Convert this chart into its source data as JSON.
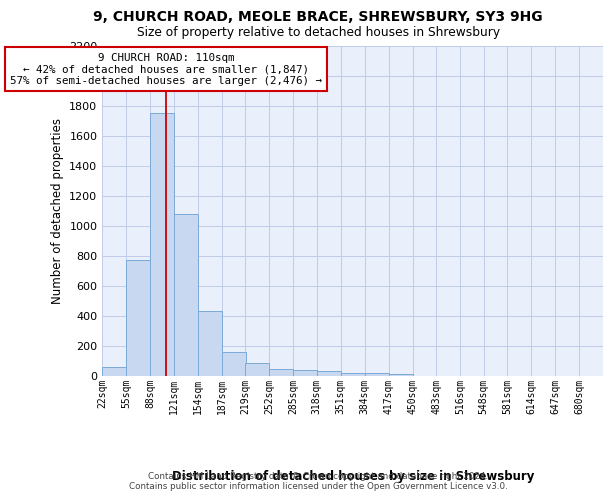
{
  "title_line1": "9, CHURCH ROAD, MEOLE BRACE, SHREWSBURY, SY3 9HG",
  "title_line2": "Size of property relative to detached houses in Shrewsbury",
  "xlabel": "Distribution of detached houses by size in Shrewsbury",
  "ylabel": "Number of detached properties",
  "bin_labels": [
    "22sqm",
    "55sqm",
    "88sqm",
    "121sqm",
    "154sqm",
    "187sqm",
    "219sqm",
    "252sqm",
    "285sqm",
    "318sqm",
    "351sqm",
    "384sqm",
    "417sqm",
    "450sqm",
    "483sqm",
    "516sqm",
    "548sqm",
    "581sqm",
    "614sqm",
    "647sqm",
    "680sqm"
  ],
  "bin_edges": [
    22,
    55,
    88,
    121,
    154,
    187,
    219,
    252,
    285,
    318,
    351,
    384,
    417,
    450,
    483,
    516,
    548,
    581,
    614,
    647,
    680
  ],
  "bar_heights": [
    55,
    770,
    1750,
    1075,
    430,
    155,
    85,
    45,
    35,
    28,
    20,
    15,
    12,
    0,
    0,
    0,
    0,
    0,
    0,
    0
  ],
  "bar_color": "#c8d8f0",
  "bar_edge_color": "#7aaad8",
  "vline_x": 110,
  "vline_color": "#cc0000",
  "ylim_max": 2200,
  "yticks": [
    0,
    200,
    400,
    600,
    800,
    1000,
    1200,
    1400,
    1600,
    1800,
    2000,
    2200
  ],
  "annotation_line1": "9 CHURCH ROAD: 110sqm",
  "annotation_line2": "← 42% of detached houses are smaller (1,847)",
  "annotation_line3": "57% of semi-detached houses are larger (2,476) →",
  "annotation_box_color": "white",
  "annotation_box_edge": "#cc0000",
  "footer_line1": "Contains HM Land Registry data © Crown copyright and database right 2024.",
  "footer_line2": "Contains public sector information licensed under the Open Government Licence v3.0.",
  "bg_color": "#eaf0fb",
  "grid_color": "#c0cce8"
}
